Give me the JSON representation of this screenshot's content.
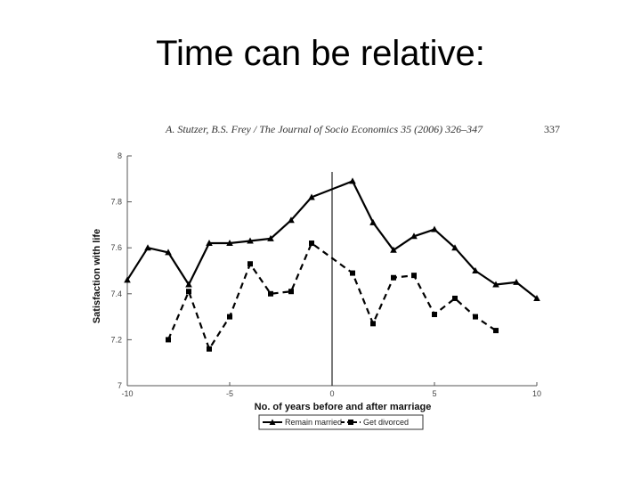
{
  "slide": {
    "title": "Time can be relative:"
  },
  "figure_header": {
    "citation": "A. Stutzer, B.S. Frey / The Journal of Socio Economics 35 (2006) 326–347",
    "page": "337"
  },
  "chart_data": {
    "type": "line",
    "xlabel": "No. of years before and after marriage",
    "ylabel": "Satisfaction with life",
    "xlim": [
      -10,
      10
    ],
    "ylim": [
      7,
      8
    ],
    "xticks": [
      "-10",
      "-5",
      "0",
      "5",
      "10"
    ],
    "yticks": [
      "7",
      "7.2",
      "7.4",
      "7.6",
      "7.8",
      "8"
    ],
    "reference_line_x": 0,
    "legend_position": "bottom-center",
    "series": [
      {
        "name": "Remain married",
        "line_style": "solid",
        "marker": "triangle",
        "x": [
          -10,
          -9,
          -8,
          -7,
          -6,
          -5,
          -4,
          -3,
          -2,
          -1,
          1,
          2,
          3,
          4,
          5,
          6,
          7,
          8,
          9,
          10
        ],
        "y": [
          7.46,
          7.6,
          7.58,
          7.44,
          7.62,
          7.62,
          7.63,
          7.64,
          7.72,
          7.82,
          7.89,
          7.71,
          7.59,
          7.65,
          7.68,
          7.6,
          7.5,
          7.44,
          7.45,
          7.38
        ]
      },
      {
        "name": "Get divorced",
        "line_style": "dashed",
        "marker": "square",
        "x": [
          -8,
          -7,
          -6,
          -5,
          -4,
          -3,
          -2,
          -1,
          1,
          2,
          3,
          4,
          5,
          6,
          7,
          8
        ],
        "y": [
          7.2,
          7.41,
          7.16,
          7.3,
          7.53,
          7.4,
          7.41,
          7.62,
          7.49,
          7.27,
          7.47,
          7.48,
          7.31,
          7.38,
          7.3,
          7.24
        ]
      }
    ],
    "colors": {
      "line": "#000000",
      "axis": "#555555"
    }
  }
}
